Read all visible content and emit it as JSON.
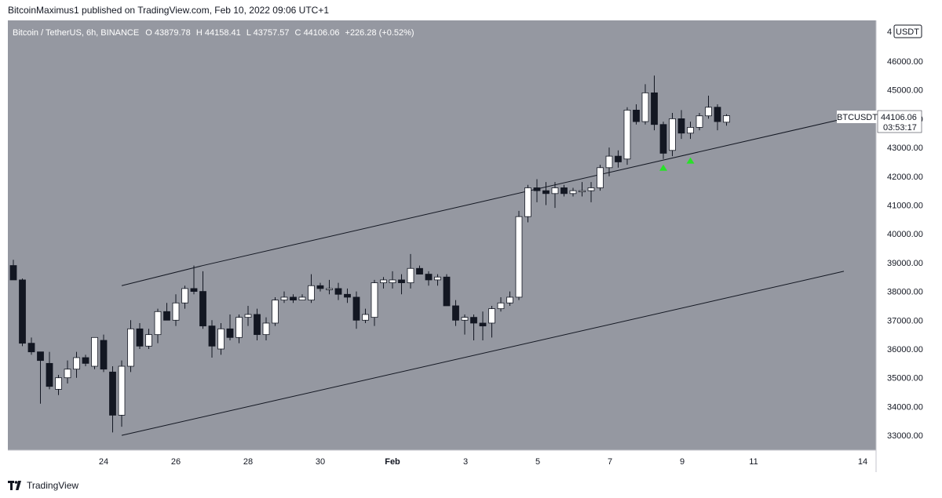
{
  "header": {
    "caption": "BitcoinMaximus1 published on TradingView.com, Feb 10, 2022 09:06 UTC+1"
  },
  "symbol_bar": {
    "name": "Bitcoin / TetherUS, 6h, BINANCE",
    "open_label": "O",
    "open": "43879.78",
    "high_label": "H",
    "high": "44158.41",
    "low_label": "L",
    "low": "43757.57",
    "close_label": "C",
    "close": "44106.06",
    "change": "+226.28 (+0.52%)"
  },
  "price_axis": {
    "currency": "USDT",
    "top_partial": "4",
    "ticks": [
      "46000.00",
      "45000.00",
      "44000.00",
      "43000.00",
      "42000.00",
      "41000.00",
      "40000.00",
      "39000.00",
      "38000.00",
      "37000.00",
      "36000.00",
      "35000.00",
      "34000.00",
      "33000.00"
    ]
  },
  "last_price_tag": {
    "symbol": "BTCUSDT",
    "price": "44106.06",
    "countdown": "03:53:17"
  },
  "time_axis": {
    "labels": [
      {
        "text": "24",
        "bold": false
      },
      {
        "text": "26",
        "bold": false
      },
      {
        "text": "28",
        "bold": false
      },
      {
        "text": "30",
        "bold": false
      },
      {
        "text": "Feb",
        "bold": true
      },
      {
        "text": "3",
        "bold": false
      },
      {
        "text": "5",
        "bold": false
      },
      {
        "text": "7",
        "bold": false
      },
      {
        "text": "9",
        "bold": false
      },
      {
        "text": "11",
        "bold": false
      },
      {
        "text": "14",
        "bold": false
      }
    ]
  },
  "footer": {
    "brand": "TradingView"
  },
  "colors": {
    "background": "#9598a1",
    "bull_body": "#ffffff",
    "bear_body": "#131722",
    "wick": "#131722",
    "channel_line": "#131722",
    "marker": "#28e228",
    "tag_bg": "#ffffff"
  },
  "chart_data": {
    "type": "candlestick",
    "interval": "6h",
    "ylim": [
      32700,
      47000
    ],
    "candles": [
      {
        "o": 38900,
        "h": 39100,
        "l": 38400,
        "c": 38400
      },
      {
        "o": 38400,
        "h": 38450,
        "l": 36100,
        "c": 36200
      },
      {
        "o": 36200,
        "h": 36400,
        "l": 35800,
        "c": 35900
      },
      {
        "o": 35900,
        "h": 35900,
        "l": 34100,
        "c": 35600
      },
      {
        "o": 35500,
        "h": 35900,
        "l": 34600,
        "c": 34700
      },
      {
        "o": 34600,
        "h": 35100,
        "l": 34400,
        "c": 35000
      },
      {
        "o": 35000,
        "h": 35600,
        "l": 34800,
        "c": 35300
      },
      {
        "o": 35300,
        "h": 35900,
        "l": 35000,
        "c": 35700
      },
      {
        "o": 35700,
        "h": 35800,
        "l": 35400,
        "c": 35500
      },
      {
        "o": 35400,
        "h": 36300,
        "l": 35300,
        "c": 36400
      },
      {
        "o": 36300,
        "h": 36500,
        "l": 35200,
        "c": 35300
      },
      {
        "o": 35200,
        "h": 35400,
        "l": 33100,
        "c": 33700
      },
      {
        "o": 33700,
        "h": 35600,
        "l": 33300,
        "c": 35400
      },
      {
        "o": 35400,
        "h": 37000,
        "l": 35200,
        "c": 36700
      },
      {
        "o": 36700,
        "h": 36900,
        "l": 36000,
        "c": 36100
      },
      {
        "o": 36100,
        "h": 36700,
        "l": 36000,
        "c": 36500
      },
      {
        "o": 36500,
        "h": 37400,
        "l": 36200,
        "c": 37300
      },
      {
        "o": 37300,
        "h": 37600,
        "l": 37000,
        "c": 37000
      },
      {
        "o": 37000,
        "h": 37900,
        "l": 36800,
        "c": 37600
      },
      {
        "o": 37600,
        "h": 38200,
        "l": 37400,
        "c": 38100
      },
      {
        "o": 38100,
        "h": 38900,
        "l": 37900,
        "c": 38000
      },
      {
        "o": 38000,
        "h": 38700,
        "l": 36700,
        "c": 36800
      },
      {
        "o": 36800,
        "h": 37000,
        "l": 35700,
        "c": 36100
      },
      {
        "o": 36000,
        "h": 36900,
        "l": 35800,
        "c": 36700
      },
      {
        "o": 36700,
        "h": 37200,
        "l": 36300,
        "c": 36400
      },
      {
        "o": 36400,
        "h": 37200,
        "l": 36200,
        "c": 37100
      },
      {
        "o": 37100,
        "h": 37500,
        "l": 36800,
        "c": 37200
      },
      {
        "o": 37200,
        "h": 37400,
        "l": 36300,
        "c": 36500
      },
      {
        "o": 36500,
        "h": 37100,
        "l": 36300,
        "c": 36900
      },
      {
        "o": 36900,
        "h": 37800,
        "l": 36800,
        "c": 37700
      },
      {
        "o": 37700,
        "h": 38000,
        "l": 37600,
        "c": 37800
      },
      {
        "o": 37800,
        "h": 37900,
        "l": 37600,
        "c": 37700
      },
      {
        "o": 37700,
        "h": 37900,
        "l": 37700,
        "c": 37800
      },
      {
        "o": 37700,
        "h": 38600,
        "l": 37600,
        "c": 38200
      },
      {
        "o": 38200,
        "h": 38300,
        "l": 38000,
        "c": 38100
      },
      {
        "o": 38100,
        "h": 38400,
        "l": 37900,
        "c": 38100
      },
      {
        "o": 38100,
        "h": 38300,
        "l": 37700,
        "c": 37900
      },
      {
        "o": 37900,
        "h": 38100,
        "l": 37600,
        "c": 37800
      },
      {
        "o": 37800,
        "h": 38000,
        "l": 36700,
        "c": 37000
      },
      {
        "o": 37000,
        "h": 37400,
        "l": 36900,
        "c": 37200
      },
      {
        "o": 37100,
        "h": 38400,
        "l": 36800,
        "c": 38300
      },
      {
        "o": 38300,
        "h": 38500,
        "l": 38100,
        "c": 38400
      },
      {
        "o": 38300,
        "h": 38700,
        "l": 38100,
        "c": 38400
      },
      {
        "o": 38400,
        "h": 38600,
        "l": 37900,
        "c": 38300
      },
      {
        "o": 38300,
        "h": 39300,
        "l": 38100,
        "c": 38800
      },
      {
        "o": 38800,
        "h": 38900,
        "l": 38600,
        "c": 38600
      },
      {
        "o": 38600,
        "h": 38700,
        "l": 38200,
        "c": 38400
      },
      {
        "o": 38400,
        "h": 38600,
        "l": 38200,
        "c": 38500
      },
      {
        "o": 38500,
        "h": 38600,
        "l": 37500,
        "c": 37500
      },
      {
        "o": 37500,
        "h": 37700,
        "l": 36800,
        "c": 37000
      },
      {
        "o": 37000,
        "h": 37200,
        "l": 36500,
        "c": 37100
      },
      {
        "o": 37100,
        "h": 37200,
        "l": 36300,
        "c": 36900
      },
      {
        "o": 36900,
        "h": 37300,
        "l": 36300,
        "c": 36800
      },
      {
        "o": 36900,
        "h": 37500,
        "l": 36400,
        "c": 37400
      },
      {
        "o": 37400,
        "h": 37800,
        "l": 37300,
        "c": 37600
      },
      {
        "o": 37600,
        "h": 38000,
        "l": 37500,
        "c": 37800
      },
      {
        "o": 37800,
        "h": 40800,
        "l": 37700,
        "c": 40600
      },
      {
        "o": 40600,
        "h": 41700,
        "l": 40400,
        "c": 41600
      },
      {
        "o": 41600,
        "h": 41900,
        "l": 41100,
        "c": 41500
      },
      {
        "o": 41500,
        "h": 41800,
        "l": 41000,
        "c": 41400
      },
      {
        "o": 41400,
        "h": 41800,
        "l": 40900,
        "c": 41600
      },
      {
        "o": 41600,
        "h": 41700,
        "l": 41300,
        "c": 41400
      },
      {
        "o": 41400,
        "h": 41600,
        "l": 41300,
        "c": 41500
      },
      {
        "o": 41500,
        "h": 41800,
        "l": 41300,
        "c": 41500
      },
      {
        "o": 41500,
        "h": 41800,
        "l": 41100,
        "c": 41600
      },
      {
        "o": 41600,
        "h": 42400,
        "l": 41500,
        "c": 42300
      },
      {
        "o": 42300,
        "h": 43000,
        "l": 42000,
        "c": 42700
      },
      {
        "o": 42700,
        "h": 42900,
        "l": 42300,
        "c": 42500
      },
      {
        "o": 42600,
        "h": 44400,
        "l": 42400,
        "c": 44300
      },
      {
        "o": 44300,
        "h": 44500,
        "l": 43800,
        "c": 43900
      },
      {
        "o": 43900,
        "h": 45200,
        "l": 43800,
        "c": 44900
      },
      {
        "o": 44900,
        "h": 45500,
        "l": 43600,
        "c": 43800
      },
      {
        "o": 43800,
        "h": 43900,
        "l": 42600,
        "c": 42800
      },
      {
        "o": 42900,
        "h": 44200,
        "l": 42700,
        "c": 44000
      },
      {
        "o": 44000,
        "h": 44300,
        "l": 43300,
        "c": 43500
      },
      {
        "o": 43500,
        "h": 43900,
        "l": 43300,
        "c": 43700
      },
      {
        "o": 43700,
        "h": 44200,
        "l": 43600,
        "c": 44100
      },
      {
        "o": 44100,
        "h": 44800,
        "l": 44000,
        "c": 44400
      },
      {
        "o": 44400,
        "h": 44500,
        "l": 43600,
        "c": 43900
      },
      {
        "o": 43880,
        "h": 44158,
        "l": 43758,
        "c": 44106
      }
    ],
    "channel": {
      "upper": [
        {
          "i": 12,
          "p": 38200
        },
        {
          "i": 21,
          "p": 38900
        },
        {
          "i": 92,
          "p": 44000
        }
      ],
      "lower": [
        {
          "i": 12,
          "p": 33000
        },
        {
          "i": 92,
          "p": 38700
        }
      ]
    },
    "markers": [
      {
        "i": 72,
        "p": 42300
      },
      {
        "i": 75,
        "p": 42550
      }
    ]
  }
}
